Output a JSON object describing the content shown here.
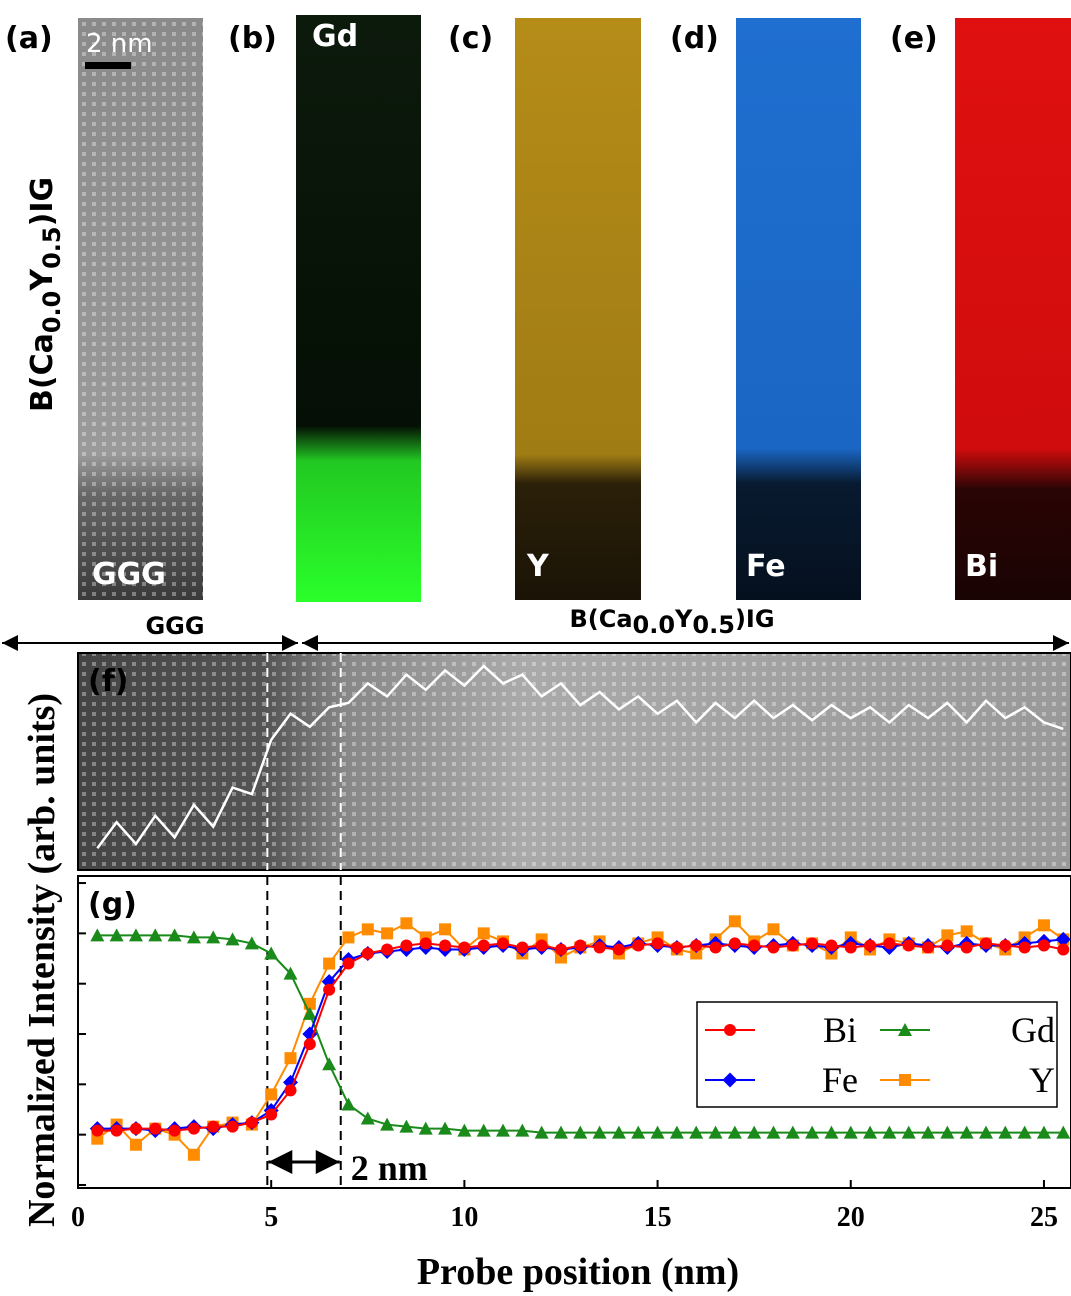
{
  "images": [
    {
      "label": "(a)",
      "scale_bar": "2 nm",
      "element": "GGG"
    },
    {
      "label": "(b)",
      "element": "Gd"
    },
    {
      "label": "(c)",
      "element": "Y"
    },
    {
      "label": "(d)",
      "element": "Fe"
    },
    {
      "label": "(e)",
      "element": "Bi"
    }
  ],
  "film_label": [
    "B(Ca",
    "0.0",
    "Y",
    "0.5",
    ")IG"
  ],
  "region_labels": {
    "substrate": "GGG"
  },
  "chart_data": [
    {
      "type": "line",
      "label": "(f)",
      "x": [
        0.5,
        1,
        1.5,
        2,
        2.5,
        3,
        3.5,
        4,
        4.5,
        5,
        5.5,
        6,
        6.5,
        7,
        7.5,
        8,
        8.5,
        9,
        9.5,
        10,
        10.5,
        11,
        11.5,
        12,
        12.5,
        13,
        13.5,
        14,
        14.5,
        15,
        15.5,
        16,
        16.5,
        17,
        17.5,
        18,
        18.5,
        19,
        19.5,
        20,
        20.5,
        21,
        21.5,
        22,
        22.5,
        23,
        23.5,
        24,
        24.5,
        25,
        25.5
      ],
      "series": [
        {
          "color": "#ffffff",
          "values": [
            0.1,
            0.22,
            0.12,
            0.25,
            0.15,
            0.3,
            0.2,
            0.38,
            0.35,
            0.6,
            0.72,
            0.66,
            0.75,
            0.77,
            0.86,
            0.8,
            0.9,
            0.83,
            0.92,
            0.85,
            0.94,
            0.86,
            0.9,
            0.8,
            0.86,
            0.76,
            0.82,
            0.74,
            0.8,
            0.72,
            0.78,
            0.68,
            0.77,
            0.7,
            0.78,
            0.7,
            0.76,
            0.69,
            0.76,
            0.7,
            0.75,
            0.68,
            0.76,
            0.7,
            0.77,
            0.68,
            0.78,
            0.7,
            0.75,
            0.68,
            0.65
          ]
        }
      ],
      "xlim": [
        0,
        25.7
      ],
      "ylim": [
        0,
        1
      ],
      "vlines": [
        4.9,
        6.8
      ]
    },
    {
      "type": "line",
      "label": "(g)",
      "xlabel": "Probe position (nm)",
      "ylabel": "Normalized Intensity (arb. units)",
      "annotation": "2 nm",
      "x": [
        0.5,
        1,
        1.5,
        2,
        2.5,
        3,
        3.5,
        4,
        4.5,
        5,
        5.5,
        6,
        6.5,
        7,
        7.5,
        8,
        8.5,
        9,
        9.5,
        10,
        10.5,
        11,
        11.5,
        12,
        12.5,
        13,
        13.5,
        14,
        14.5,
        15,
        15.5,
        16,
        16.5,
        17,
        17.5,
        18,
        18.5,
        19,
        19.5,
        20,
        20.5,
        21,
        21.5,
        22,
        22.5,
        23,
        23.5,
        24,
        24.5,
        25,
        25.5
      ],
      "series": [
        {
          "name": "Bi",
          "color": "#ff0000",
          "marker": "circle",
          "values": [
            0.02,
            0.02,
            0.03,
            0.03,
            0.02,
            0.03,
            0.04,
            0.04,
            0.06,
            0.1,
            0.22,
            0.45,
            0.72,
            0.85,
            0.9,
            0.92,
            0.94,
            0.95,
            0.94,
            0.93,
            0.94,
            0.95,
            0.93,
            0.94,
            0.92,
            0.94,
            0.93,
            0.92,
            0.94,
            0.95,
            0.93,
            0.94,
            0.93,
            0.95,
            0.94,
            0.93,
            0.94,
            0.95,
            0.94,
            0.93,
            0.94,
            0.95,
            0.94,
            0.93,
            0.94,
            0.93,
            0.95,
            0.94,
            0.93,
            0.94,
            0.92
          ]
        },
        {
          "name": "Fe",
          "color": "#0000ff",
          "marker": "diamond",
          "values": [
            0.03,
            0.03,
            0.03,
            0.02,
            0.03,
            0.04,
            0.03,
            0.05,
            0.06,
            0.12,
            0.26,
            0.5,
            0.76,
            0.87,
            0.9,
            0.91,
            0.92,
            0.93,
            0.92,
            0.92,
            0.93,
            0.94,
            0.92,
            0.93,
            0.92,
            0.93,
            0.94,
            0.93,
            0.95,
            0.94,
            0.93,
            0.94,
            0.95,
            0.94,
            0.93,
            0.94,
            0.95,
            0.94,
            0.93,
            0.95,
            0.94,
            0.93,
            0.95,
            0.94,
            0.93,
            0.95,
            0.94,
            0.94,
            0.95,
            0.96,
            0.97
          ]
        },
        {
          "name": "Gd",
          "color": "#1a8a1a",
          "marker": "triangle",
          "values": [
            0.99,
            0.99,
            0.99,
            0.99,
            0.99,
            0.98,
            0.98,
            0.97,
            0.95,
            0.9,
            0.8,
            0.6,
            0.35,
            0.15,
            0.08,
            0.05,
            0.04,
            0.03,
            0.03,
            0.02,
            0.02,
            0.02,
            0.02,
            0.01,
            0.01,
            0.01,
            0.01,
            0.01,
            0.01,
            0.01,
            0.01,
            0.01,
            0.01,
            0.01,
            0.01,
            0.01,
            0.01,
            0.01,
            0.01,
            0.01,
            0.01,
            0.01,
            0.01,
            0.01,
            0.01,
            0.01,
            0.01,
            0.01,
            0.01,
            0.01,
            0.01
          ]
        },
        {
          "name": "Y",
          "color": "#ff8c00",
          "marker": "square",
          "values": [
            -0.02,
            0.05,
            -0.05,
            0.03,
            0.0,
            -0.1,
            0.04,
            0.06,
            0.05,
            0.2,
            0.38,
            0.65,
            0.85,
            0.98,
            1.02,
            1.0,
            1.05,
            0.98,
            1.02,
            0.92,
            1.0,
            0.96,
            0.9,
            0.97,
            0.88,
            0.93,
            0.96,
            0.9,
            0.95,
            0.98,
            0.92,
            0.9,
            0.97,
            1.06,
            0.96,
            1.02,
            0.94,
            0.95,
            0.9,
            0.98,
            0.92,
            0.97,
            0.95,
            0.93,
            0.99,
            1.01,
            0.95,
            0.92,
            0.98,
            1.04,
            0.97
          ]
        }
      ],
      "xlim": [
        0,
        25.7
      ],
      "xticks": [
        0,
        5,
        10,
        15,
        20,
        25
      ],
      "ylim": [
        -0.265,
        1.285
      ],
      "yticks": [
        -0.25,
        0,
        0.25,
        0.5,
        0.75,
        1,
        1.25
      ],
      "vlines": [
        4.9,
        6.8
      ]
    }
  ]
}
